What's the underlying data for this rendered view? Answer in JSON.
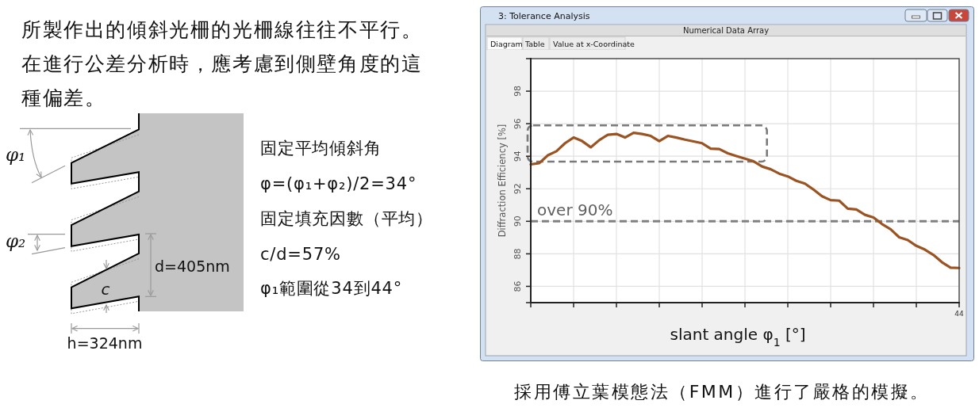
{
  "chart_data": {
    "type": "line",
    "title": "所製作出的傾斜光柵的光柵線往往不平行。在進行公差分析時，應考慮到側壁角度的這種偏差。",
    "xlabel": "slant angle φ$_{1}$ [°]",
    "ylabel": "Diffraction Efficiency [%]",
    "categories": [
      null,
      null,
      null,
      null,
      null,
      null,
      null,
      null,
      null,
      null,
      null,
      null,
      null,
      null,
      null,
      null,
      null,
      null,
      null,
      null,
      null,
      null,
      null,
      null,
      null,
      null,
      null,
      null,
      null,
      null,
      null,
      null,
      null,
      null,
      null,
      null,
      null,
      null,
      null,
      null,
      null,
      null,
      null,
      null,
      null,
      null,
      null,
      null,
      null,
      null,
      null
    ],
    "values": [
      93.5,
      93.58,
      94.06,
      94.31,
      94.8,
      95.15,
      94.93,
      94.55,
      94.99,
      95.32,
      95.37,
      95.15,
      95.44,
      95.37,
      95.25,
      94.93,
      95.25,
      95.15,
      95.02,
      94.91,
      94.8,
      94.47,
      94.44,
      94.18,
      94.01,
      93.85,
      93.69,
      93.37,
      93.2,
      92.93,
      92.76,
      92.49,
      92.32,
      91.95,
      91.54,
      91.3,
      91.27,
      90.78,
      90.73,
      90.4,
      90.24,
      89.83,
      89.51,
      89.02,
      88.85,
      88.49,
      88.26,
      87.93,
      87.48,
      87.15,
      87.13
    ],
    "color": "#9b5322",
    "ylim": [
      85,
      100
    ],
    "yticks": [
      {
        "value": 85,
        "label": null
      },
      86,
      88,
      90,
      92,
      94,
      96,
      98,
      {
        "value": 100,
        "label": null
      }
    ],
    "grid": true,
    "marker": "none",
    "line_style": "solid",
    "ref_lines": [
      {
        "axis": "y",
        "value": 90,
        "label": "over 90%",
        "color": "#808080",
        "line_style": "dashed"
      }
    ],
    "annotations": [
      "固定平均傾斜角",
      "φ=(φ₁+φ₂)/2=34°",
      "固定填充因數（平均）",
      "c/d=57%",
      "φ₁範圍從34到44°",
      "φ₁",
      "φ₂",
      "d=405nm",
      "c",
      "h=324nm",
      "3: Tolerance Analysis",
      "Numerical Data Array",
      "Diagram",
      "Table",
      "Value at x-Coordinate",
      "採用傅立葉模態法（FMM）進行了嚴格的模擬。",
      "44"
    ]
  }
}
